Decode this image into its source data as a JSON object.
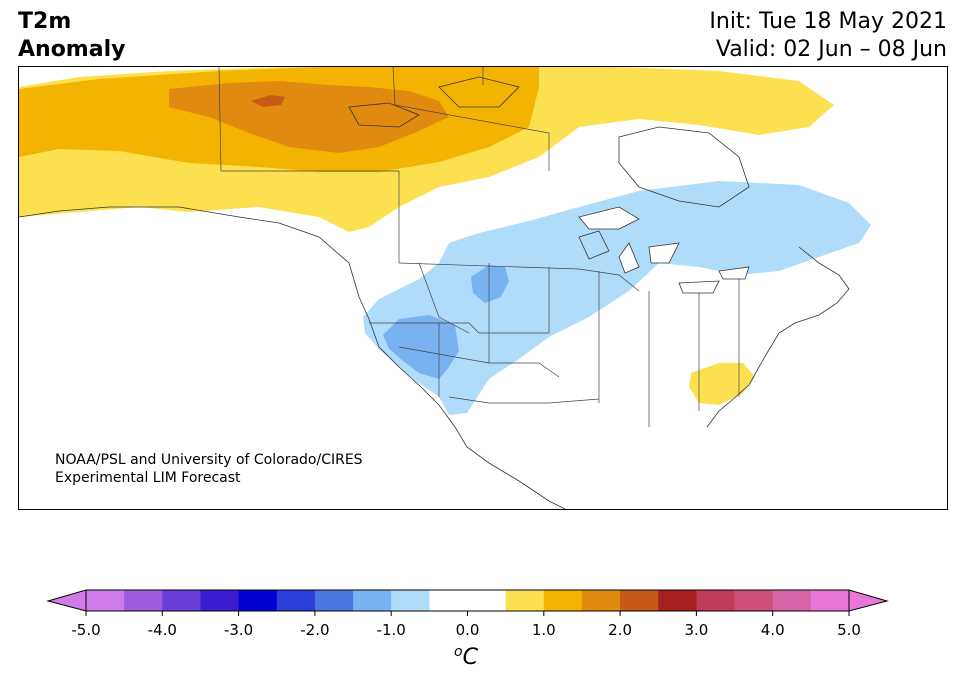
{
  "title": {
    "line1": "T2m",
    "line2": "Anomaly"
  },
  "header": {
    "init": "Init: Tue 18 May 2021",
    "valid": "Valid: 02 Jun – 08 Jun"
  },
  "credit": {
    "line1": "NOAA/PSL and University of Colorado/CIRES",
    "line2": "Experimental LIM Forecast"
  },
  "colorbar": {
    "unit_superscript": "o",
    "unit_main": "C",
    "tick_labels": [
      "-5.0",
      "-4.0",
      "-3.0",
      "-2.0",
      "-1.0",
      "0.0",
      "1.0",
      "2.0",
      "3.0",
      "4.0",
      "5.0"
    ],
    "colors": [
      "#d07ce8",
      "#a05ce0",
      "#6a3ed8",
      "#3c1ed0",
      "#0000d0",
      "#2a3ed8",
      "#4a78e0",
      "#78b2f0",
      "#b0dcfc",
      "#ffffff",
      "#ffffff",
      "#fde050",
      "#f2b400",
      "#e08a10",
      "#c85a18",
      "#a82020",
      "#c03a5a",
      "#cc5078",
      "#d864a8",
      "#e878d8"
    ],
    "under_color": "#d07ce8",
    "over_color": "#e878d8"
  },
  "legend_colors": {
    "warm_1": "#fde050",
    "warm_2": "#f2b400",
    "warm_3": "#e08a10",
    "warm_4": "#c85a18",
    "cool_1": "#b0dcfc",
    "cool_2": "#78b2f0"
  }
}
